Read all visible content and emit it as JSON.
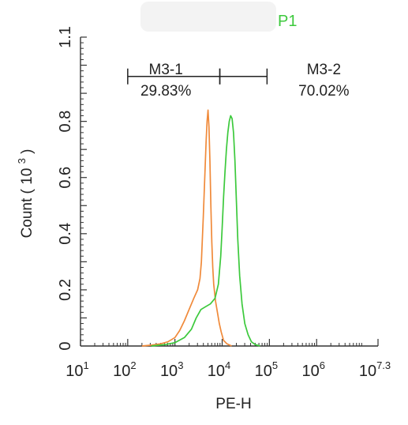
{
  "chart_data": {
    "type": "line",
    "gate_name": "P1",
    "gate_color": "#3cc93c",
    "xlabel": "PE-H",
    "ylabel": "Count",
    "ylabel_unit_base": "10",
    "ylabel_unit_exp": "3",
    "x_scale": "log",
    "xlim_log10": [
      1,
      7.3
    ],
    "ylim": [
      0,
      1.1
    ],
    "x_ticks": [
      {
        "base": "10",
        "exp": "1",
        "log": 1
      },
      {
        "base": "10",
        "exp": "2",
        "log": 2
      },
      {
        "base": "10",
        "exp": "3",
        "log": 3
      },
      {
        "base": "10",
        "exp": "4",
        "log": 4
      },
      {
        "base": "10",
        "exp": "5",
        "log": 5
      },
      {
        "base": "10",
        "exp": "6",
        "log": 6
      },
      {
        "base": "10",
        "exp": "7.3",
        "log": 7.3
      }
    ],
    "y_ticks": [
      "0",
      "0.2",
      "0.4",
      "0.6",
      "0.8",
      "1.1"
    ],
    "y_tick_values": [
      0,
      0.2,
      0.4,
      0.6,
      0.8,
      1.1
    ],
    "markers": [
      {
        "name": "M3-1",
        "percent": "29.83%",
        "range_log10": [
          2.0,
          3.95
        ],
        "y": 0.96
      },
      {
        "name": "M3-2",
        "percent": "70.02%",
        "range_log10": [
          3.95,
          4.95
        ],
        "y": 0.96
      }
    ],
    "series": [
      {
        "color": "#f08a3a",
        "points": [
          [
            2.3,
            0
          ],
          [
            2.5,
            0.003
          ],
          [
            2.7,
            0.008
          ],
          [
            2.85,
            0.015
          ],
          [
            3.0,
            0.03
          ],
          [
            3.1,
            0.055
          ],
          [
            3.2,
            0.09
          ],
          [
            3.3,
            0.13
          ],
          [
            3.4,
            0.17
          ],
          [
            3.48,
            0.2
          ],
          [
            3.53,
            0.24
          ],
          [
            3.56,
            0.3
          ],
          [
            3.58,
            0.38
          ],
          [
            3.6,
            0.46
          ],
          [
            3.62,
            0.55
          ],
          [
            3.64,
            0.64
          ],
          [
            3.66,
            0.73
          ],
          [
            3.68,
            0.8
          ],
          [
            3.7,
            0.84
          ],
          [
            3.72,
            0.78
          ],
          [
            3.74,
            0.66
          ],
          [
            3.76,
            0.5
          ],
          [
            3.78,
            0.37
          ],
          [
            3.8,
            0.28
          ],
          [
            3.82,
            0.22
          ],
          [
            3.86,
            0.16
          ],
          [
            3.9,
            0.12
          ],
          [
            3.94,
            0.08
          ],
          [
            3.98,
            0.05
          ],
          [
            4.03,
            0.02
          ],
          [
            4.1,
            0.008
          ],
          [
            4.2,
            0
          ]
        ]
      },
      {
        "color": "#3cc93c",
        "points": [
          [
            2.5,
            0
          ],
          [
            2.8,
            0.005
          ],
          [
            3.0,
            0.012
          ],
          [
            3.2,
            0.03
          ],
          [
            3.35,
            0.06
          ],
          [
            3.45,
            0.1
          ],
          [
            3.55,
            0.13
          ],
          [
            3.65,
            0.14
          ],
          [
            3.75,
            0.15
          ],
          [
            3.85,
            0.17
          ],
          [
            3.92,
            0.22
          ],
          [
            3.97,
            0.32
          ],
          [
            4.0,
            0.42
          ],
          [
            4.03,
            0.53
          ],
          [
            4.06,
            0.62
          ],
          [
            4.09,
            0.7
          ],
          [
            4.12,
            0.76
          ],
          [
            4.15,
            0.8
          ],
          [
            4.18,
            0.82
          ],
          [
            4.21,
            0.81
          ],
          [
            4.24,
            0.76
          ],
          [
            4.27,
            0.66
          ],
          [
            4.3,
            0.52
          ],
          [
            4.33,
            0.38
          ],
          [
            4.37,
            0.25
          ],
          [
            4.42,
            0.15
          ],
          [
            4.48,
            0.08
          ],
          [
            4.55,
            0.04
          ],
          [
            4.62,
            0.015
          ],
          [
            4.7,
            0.005
          ],
          [
            4.8,
            0
          ]
        ]
      }
    ]
  }
}
